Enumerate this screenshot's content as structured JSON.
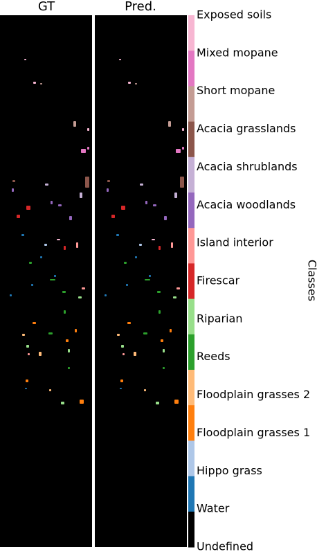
{
  "panels": [
    {
      "title": "GT"
    },
    {
      "title": "Pred."
    }
  ],
  "legend": {
    "label": "Classes",
    "classes": [
      {
        "name": "Exposed soils",
        "color": "#f7b6d2"
      },
      {
        "name": "Mixed mopane",
        "color": "#e377c2"
      },
      {
        "name": "Short mopane",
        "color": "#c49c94"
      },
      {
        "name": "Acacia grasslands",
        "color": "#8c564b"
      },
      {
        "name": "Acacia shrublands",
        "color": "#c5b0d5"
      },
      {
        "name": "Acacia woodlands",
        "color": "#9467bd"
      },
      {
        "name": "Island interior",
        "color": "#ff9896"
      },
      {
        "name": "Firescar",
        "color": "#d62728"
      },
      {
        "name": "Riparian",
        "color": "#98df8a"
      },
      {
        "name": "Reeds",
        "color": "#2ca02c"
      },
      {
        "name": "Floodplain grasses 2",
        "color": "#ffbb78"
      },
      {
        "name": "Floodplain grasses 1",
        "color": "#ff7f0e"
      },
      {
        "name": "Hippo grass",
        "color": "#aec7e8"
      },
      {
        "name": "Water",
        "color": "#1f77b4"
      },
      {
        "name": "Undefined",
        "color": "#000000"
      }
    ]
  }
}
